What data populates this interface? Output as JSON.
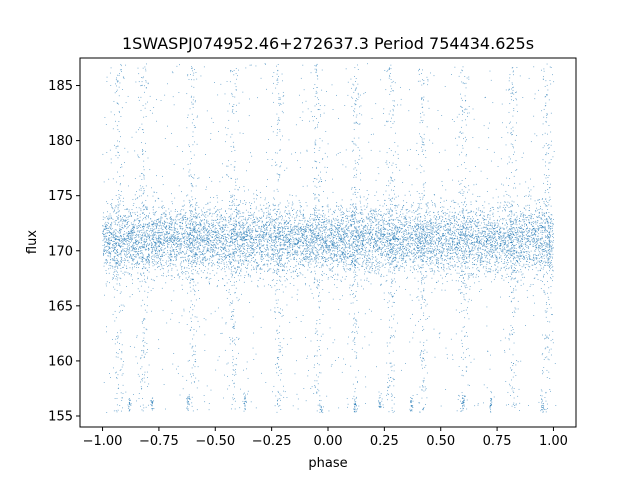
{
  "chart_data": {
    "type": "scatter",
    "title": "1SWASPJ074952.46+272637.3 Period 754434.625s",
    "xlabel": "phase",
    "ylabel": "flux",
    "xlim": [
      -1.1,
      1.1
    ],
    "ylim": [
      154.0,
      187.5
    ],
    "xticks": [
      -1.0,
      -0.75,
      -0.5,
      -0.25,
      0.0,
      0.25,
      0.5,
      0.75,
      1.0
    ],
    "xtick_labels": [
      "−1.00",
      "−0.75",
      "−0.50",
      "−0.25",
      "0.00",
      "0.25",
      "0.50",
      "0.75",
      "1.00"
    ],
    "yticks": [
      155,
      160,
      165,
      170,
      175,
      180,
      185
    ],
    "ytick_labels": [
      "155",
      "160",
      "165",
      "170",
      "175",
      "180",
      "185"
    ],
    "grid": false,
    "legend": "none",
    "point_color": "#1f77b4",
    "phase_range": [
      -1.0,
      1.0
    ],
    "baseline_flux": 171.0,
    "core_spread": 1.6,
    "flux_range": [
      155.3,
      187.0
    ],
    "flux_floor_points": [
      [
        -0.88,
        155.8
      ],
      [
        -0.78,
        156.0
      ],
      [
        -0.62,
        156.0
      ],
      [
        -0.37,
        156.2
      ],
      [
        -0.03,
        155.6
      ],
      [
        0.12,
        155.8
      ],
      [
        0.23,
        156.2
      ],
      [
        0.37,
        156.0
      ],
      [
        0.6,
        156.3
      ],
      [
        0.72,
        156.0
      ],
      [
        0.95,
        155.8
      ]
    ],
    "outburst_phases": [
      -0.93,
      -0.82,
      -0.6,
      -0.42,
      -0.22,
      -0.05,
      0.12,
      0.28,
      0.42,
      0.6,
      0.82,
      0.97
    ]
  }
}
